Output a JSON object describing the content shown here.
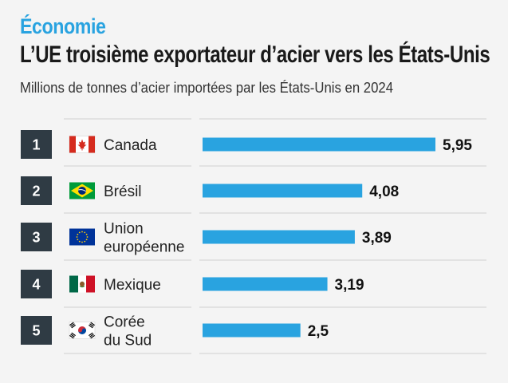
{
  "header": {
    "kicker": "Économie",
    "title": "L’UE troisième exportateur d’acier vers les États-Unis",
    "subtitle": "Millions de tonnes d’acier importées par les États-Unis en 2024"
  },
  "colors": {
    "accent": "#29a3e0",
    "bar": "#29a3e0",
    "rank_box": "#2f3b44",
    "divider": "#cfcfcf"
  },
  "chart_data": {
    "type": "bar",
    "orientation": "horizontal",
    "title": "L’UE troisième exportateur d’acier vers les États-Unis",
    "subtitle": "Millions de tonnes d’acier importées par les États-Unis en 2024",
    "ranks": [
      "1",
      "2",
      "3",
      "4",
      "5"
    ],
    "categories": [
      [
        "Canada"
      ],
      [
        "Brésil"
      ],
      [
        "Union",
        "européenne"
      ],
      [
        "Mexique"
      ],
      [
        "Corée",
        "du Sud"
      ]
    ],
    "flags": [
      "flag-canada-icon",
      "flag-brazil-icon",
      "flag-eu-icon",
      "flag-mexico-icon",
      "flag-south-korea-icon"
    ],
    "values": [
      5.95,
      4.08,
      3.89,
      3.19,
      2.5
    ],
    "value_labels": [
      "5,95",
      "4,08",
      "3,89",
      "3,19",
      "2,5"
    ],
    "xlim": [
      0,
      5.95
    ],
    "grid": false,
    "legend": "none"
  }
}
